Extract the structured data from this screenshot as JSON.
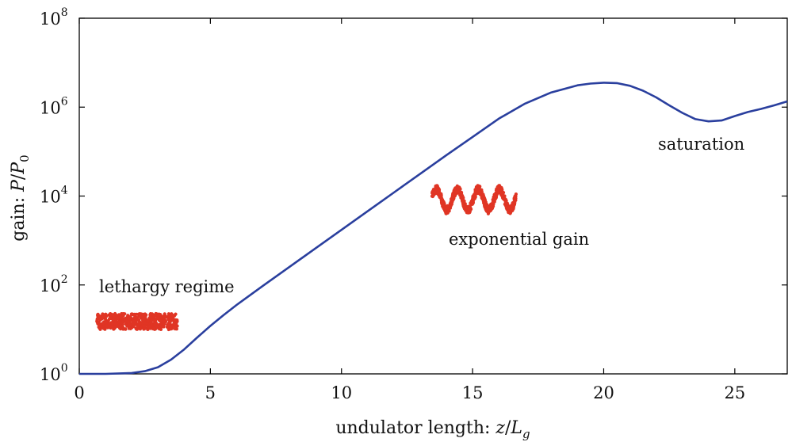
{
  "chart_data": {
    "type": "line",
    "title": "",
    "xlabel": {
      "prefix": "undulator length: ",
      "var": "z",
      "slash": "/",
      "var2": "L",
      "subscript": "g"
    },
    "ylabel": {
      "prefix": "gain: ",
      "var": "P",
      "slash": "/",
      "var2": "P",
      "subscript": "0"
    },
    "xlim": [
      0,
      27
    ],
    "ylim_log10": [
      0,
      8
    ],
    "y_scale": "log",
    "grid": false,
    "x_ticks": [
      0,
      5,
      10,
      15,
      20,
      25
    ],
    "x_tick_labels": [
      "0",
      "5",
      "10",
      "15",
      "20",
      "25"
    ],
    "y_ticks": [
      {
        "base": "10",
        "exp": "0"
      },
      {
        "base": "10",
        "exp": "2"
      },
      {
        "base": "10",
        "exp": "4"
      },
      {
        "base": "10",
        "exp": "6"
      },
      {
        "base": "10",
        "exp": "8"
      }
    ],
    "series": [
      {
        "color": "#2a3f9e",
        "x": [
          0,
          1,
          2,
          2.5,
          3,
          3.5,
          4,
          4.5,
          5,
          5.5,
          6,
          7,
          8,
          9,
          10,
          11,
          12,
          13,
          14,
          15,
          16,
          17,
          18,
          19,
          19.5,
          20,
          20.5,
          21,
          21.5,
          22,
          22.5,
          23,
          23.5,
          24,
          24.5,
          25,
          25.5,
          26,
          26.5,
          27
        ],
        "log10_y": [
          0,
          0,
          0.02,
          0.06,
          0.15,
          0.32,
          0.55,
          0.82,
          1.08,
          1.32,
          1.55,
          1.98,
          2.4,
          2.82,
          3.24,
          3.66,
          4.08,
          4.5,
          4.92,
          5.33,
          5.74,
          6.08,
          6.33,
          6.49,
          6.53,
          6.55,
          6.54,
          6.48,
          6.37,
          6.22,
          6.04,
          5.87,
          5.73,
          5.68,
          5.7,
          5.8,
          5.89,
          5.96,
          6.04,
          6.13
        ]
      }
    ],
    "annotations": [
      {
        "text": "lethargy regime"
      },
      {
        "text": "exponential gain"
      },
      {
        "text": "saturation"
      }
    ],
    "insets": [
      {
        "name": "lethargy-beam-inset",
        "color": "#e03524",
        "shape": "noisy-flat"
      },
      {
        "name": "exponential-beam-inset",
        "color": "#e03524",
        "shape": "sinusoid",
        "periods": 4
      }
    ]
  }
}
